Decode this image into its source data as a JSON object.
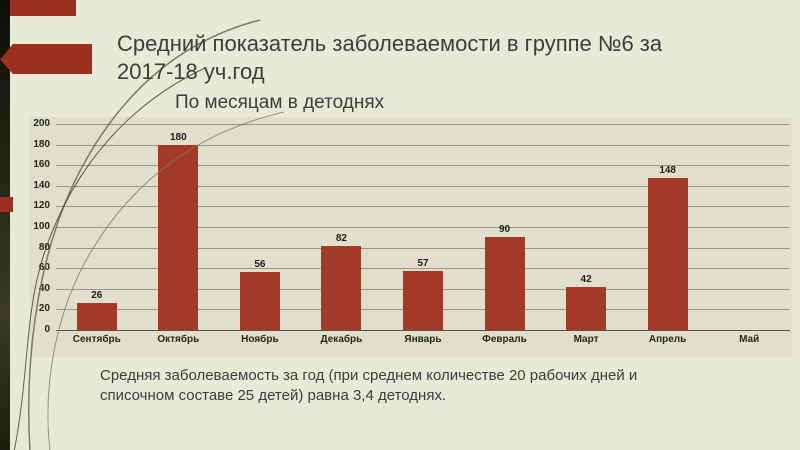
{
  "slide": {
    "title": "Средний показатель заболеваемости в группе №6 за 2017-18 уч.год",
    "subtitle": "По месяцам в детоднях",
    "footer": "Средняя заболеваемость за год (при среднем количестве 20 рабочих дней и списочном составе 25 детей) равна 3,4 детоднях."
  },
  "chart_data": {
    "type": "bar",
    "title": "По месяцам в детоднях",
    "categories": [
      "Сентябрь",
      "Октябрь",
      "Ноябрь",
      "Декабрь",
      "Январь",
      "Февраль",
      "Март",
      "Апрель",
      "Май"
    ],
    "values": [
      26,
      180,
      56,
      82,
      57,
      90,
      42,
      148,
      0
    ],
    "xlabel": "",
    "ylabel": "",
    "ylim": [
      0,
      200
    ],
    "ytick_step": 20,
    "grid": true,
    "legend": "none",
    "bar_color": "#a43928"
  },
  "colors": {
    "slide_background": "#e9e9d8",
    "plot_background": "#dfdfcc",
    "accent_red": "#9c2f1e",
    "gridline": "#97978a",
    "text": "#3d3d3d"
  }
}
